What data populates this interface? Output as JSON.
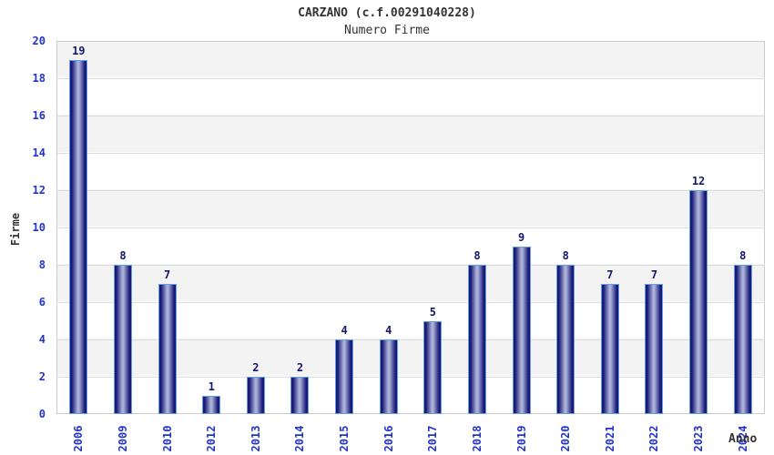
{
  "header": {
    "title": "CARZANO (c.f.00291040228)",
    "subtitle": "Numero Firme"
  },
  "chart_data": {
    "type": "bar",
    "title": "CARZANO (c.f.00291040228)",
    "subtitle": "Numero Firme",
    "xlabel": "Anno",
    "ylabel": "Firme",
    "categories": [
      "2006",
      "2009",
      "2010",
      "2012",
      "2013",
      "2014",
      "2015",
      "2016",
      "2017",
      "2018",
      "2019",
      "2020",
      "2021",
      "2022",
      "2023",
      "2024"
    ],
    "values": [
      19,
      8,
      7,
      1,
      2,
      2,
      4,
      4,
      5,
      8,
      9,
      8,
      7,
      7,
      12,
      8
    ],
    "ylim": [
      0,
      20
    ],
    "ytick_step": 2,
    "yticks": [
      0,
      2,
      4,
      6,
      8,
      10,
      12,
      14,
      16,
      18,
      20
    ],
    "grid": true,
    "legend_position": "none",
    "band_fill": "alternating horizontal bands",
    "colors": {
      "tick_label": "#2233cc",
      "value_label": "#16166b",
      "axis_title": "#333333",
      "bar_dark": "#1a1a78",
      "bar_mid": "#aab1d9",
      "bar_border": "#5f9fe0",
      "band": "#f3f3f3",
      "band_alt": "#ffffff",
      "grid_line": "#dcdcdc",
      "plot_border": "#cccccc",
      "background": "#ffffff"
    }
  }
}
